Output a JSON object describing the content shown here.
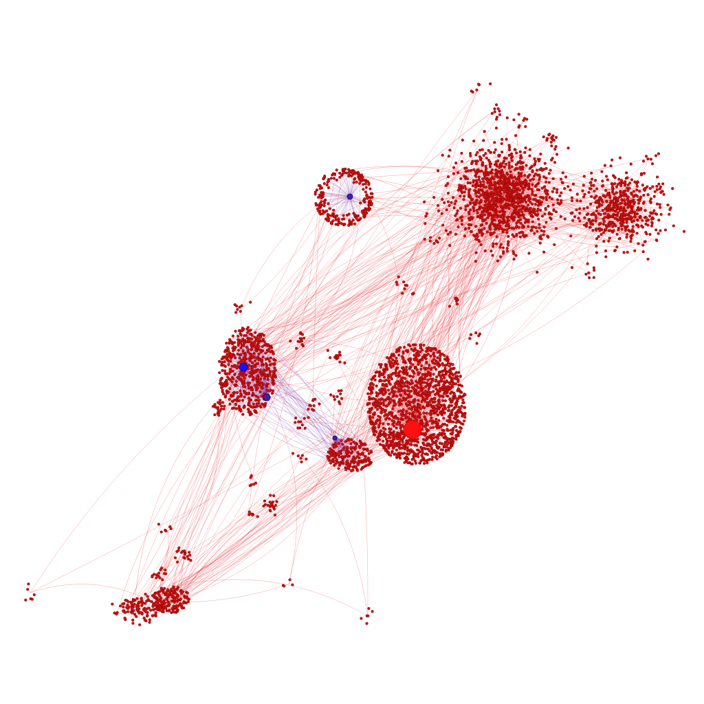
{
  "graph": {
    "type": "network",
    "background_color": "#ffffff",
    "node_color": "#cc1111",
    "node_stroke_color": "#7a0000",
    "edge_color": "#e8141e",
    "hub_edge_color": "#6a1fa0",
    "hub_colors": {
      "red_hub": "#ff1010",
      "blue_hub": "#1a10ff",
      "purple_hub": "#4a1aa8"
    },
    "clusters": [
      {
        "id": "dense-core",
        "node_count": 1400,
        "hub": "red_hub"
      },
      {
        "id": "upper-right-group",
        "node_count": 1100,
        "hub": null
      },
      {
        "id": "far-right-group",
        "node_count": 500,
        "hub": null
      },
      {
        "id": "left-group",
        "node_count": 550,
        "hub": "blue_hub"
      },
      {
        "id": "top-middle-ring",
        "node_count": 220,
        "hub": "purple_hub"
      },
      {
        "id": "lower-middle-group",
        "node_count": 180,
        "hub": "purple_hub"
      },
      {
        "id": "lower-left-group",
        "node_count": 160,
        "hub": null
      },
      {
        "id": "bottom-left-tail",
        "node_count": 110,
        "hub": null
      }
    ]
  }
}
